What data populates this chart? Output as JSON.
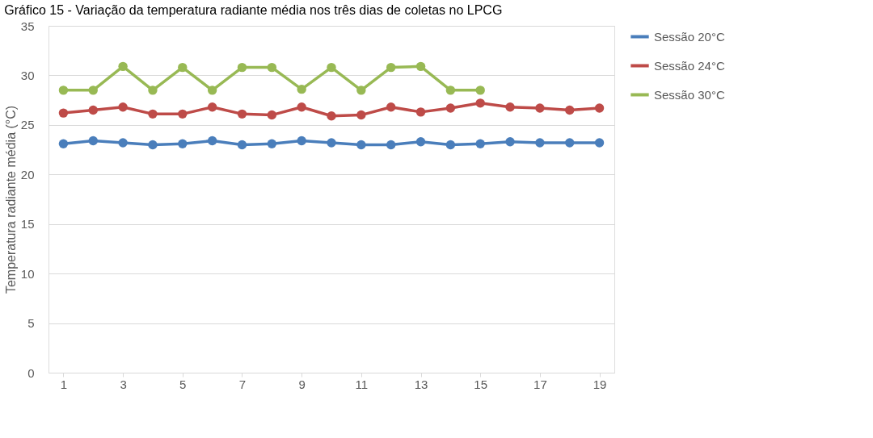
{
  "chart_data": {
    "type": "line",
    "title": "Gráfico 15 - Variação da temperatura radiante média nos três dias de coletas no LPCG",
    "ylabel": "Temperatura radiante média (°C)",
    "x": [
      1,
      2,
      3,
      4,
      5,
      6,
      7,
      8,
      9,
      10,
      11,
      12,
      13,
      14,
      15,
      16,
      17,
      18,
      19
    ],
    "xlim": [
      0.5,
      19.5
    ],
    "xticks": [
      1,
      3,
      5,
      7,
      9,
      11,
      13,
      15,
      17,
      19
    ],
    "ylim": [
      0,
      35
    ],
    "yticks": [
      0,
      5,
      10,
      15,
      20,
      25,
      30,
      35
    ],
    "grid": "y",
    "legend": "right",
    "marker": "circle",
    "line_style": "solid",
    "series": [
      {
        "name": "Sessão 20°C",
        "color": "#4a7ebb",
        "values": [
          23.1,
          23.4,
          23.2,
          23.0,
          23.1,
          23.4,
          23.0,
          23.1,
          23.4,
          23.2,
          23.0,
          23.0,
          23.3,
          23.0,
          23.1,
          23.3,
          23.2,
          23.2,
          23.2
        ]
      },
      {
        "name": "Sessão 24°C",
        "color": "#be4b48",
        "values": [
          26.2,
          26.5,
          26.8,
          26.1,
          26.1,
          26.8,
          26.1,
          26.0,
          26.8,
          25.9,
          26.0,
          26.8,
          26.3,
          26.7,
          27.2,
          26.8,
          26.7,
          26.5,
          26.7
        ]
      },
      {
        "name": "Sessão 30°C",
        "color": "#98b954",
        "values": [
          28.5,
          28.5,
          30.9,
          28.5,
          30.8,
          28.5,
          30.8,
          30.8,
          28.6,
          30.8,
          28.5,
          30.8,
          30.9,
          28.5,
          28.5,
          null,
          null,
          null,
          null
        ]
      }
    ]
  }
}
